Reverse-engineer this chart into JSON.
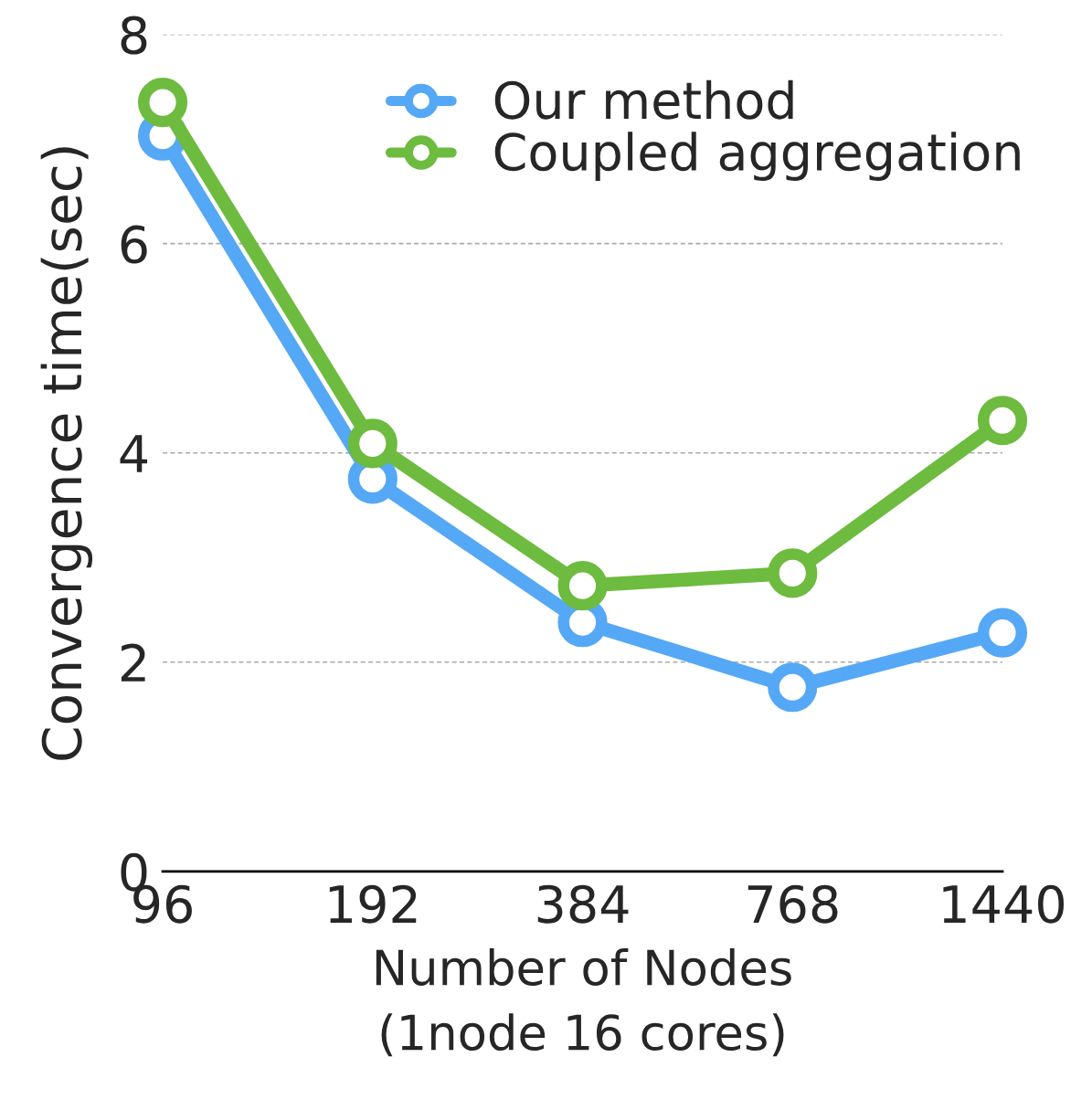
{
  "chart_data": {
    "type": "line",
    "xlabel": "Number of Nodes\n(1node 16 cores)",
    "ylabel": "Convergence time(sec)",
    "categories": [
      "96",
      "192",
      "384",
      "768",
      "1440"
    ],
    "series": [
      {
        "name": "Our method",
        "color": "#55a8f5",
        "values": [
          7.03,
          3.75,
          2.38,
          1.76,
          2.28
        ]
      },
      {
        "name": "Coupled aggregation",
        "color": "#6dbb3f",
        "values": [
          7.35,
          4.09,
          2.73,
          2.85,
          4.31
        ]
      }
    ],
    "ylim": [
      0,
      8
    ],
    "yticks": [
      0,
      2,
      4,
      6,
      8
    ],
    "grid": "y",
    "legend": "top right",
    "marker": "circle",
    "line_style": "solid"
  }
}
